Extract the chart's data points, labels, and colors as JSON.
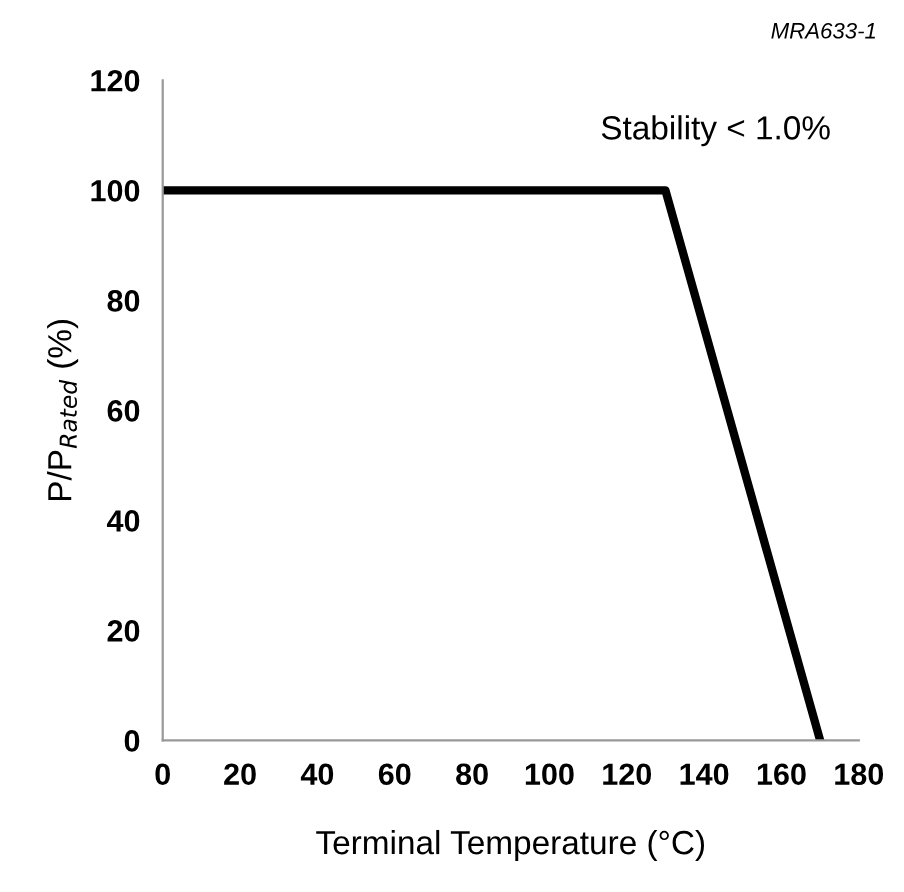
{
  "chart_data": {
    "type": "line",
    "xlabel": "Terminal Temperature (°C)",
    "ylabel": "P/P$_{Rated}$ (%)",
    "x": [
      0,
      130,
      170
    ],
    "series": [
      {
        "color": "#000000",
        "values": [
          100,
          100,
          0
        ]
      }
    ],
    "xlim": [
      0,
      180
    ],
    "xticks": [
      0,
      20,
      40,
      60,
      80,
      100,
      120,
      140,
      160,
      180
    ],
    "ylim": [
      0,
      120
    ],
    "yticks": [
      0,
      20,
      40,
      60,
      80,
      100,
      120
    ],
    "annotations": [
      "Stability < 1.0%",
      "MRA633-1"
    ],
    "grid": false,
    "legend": false,
    "marker": "none",
    "line_style": "solid"
  }
}
